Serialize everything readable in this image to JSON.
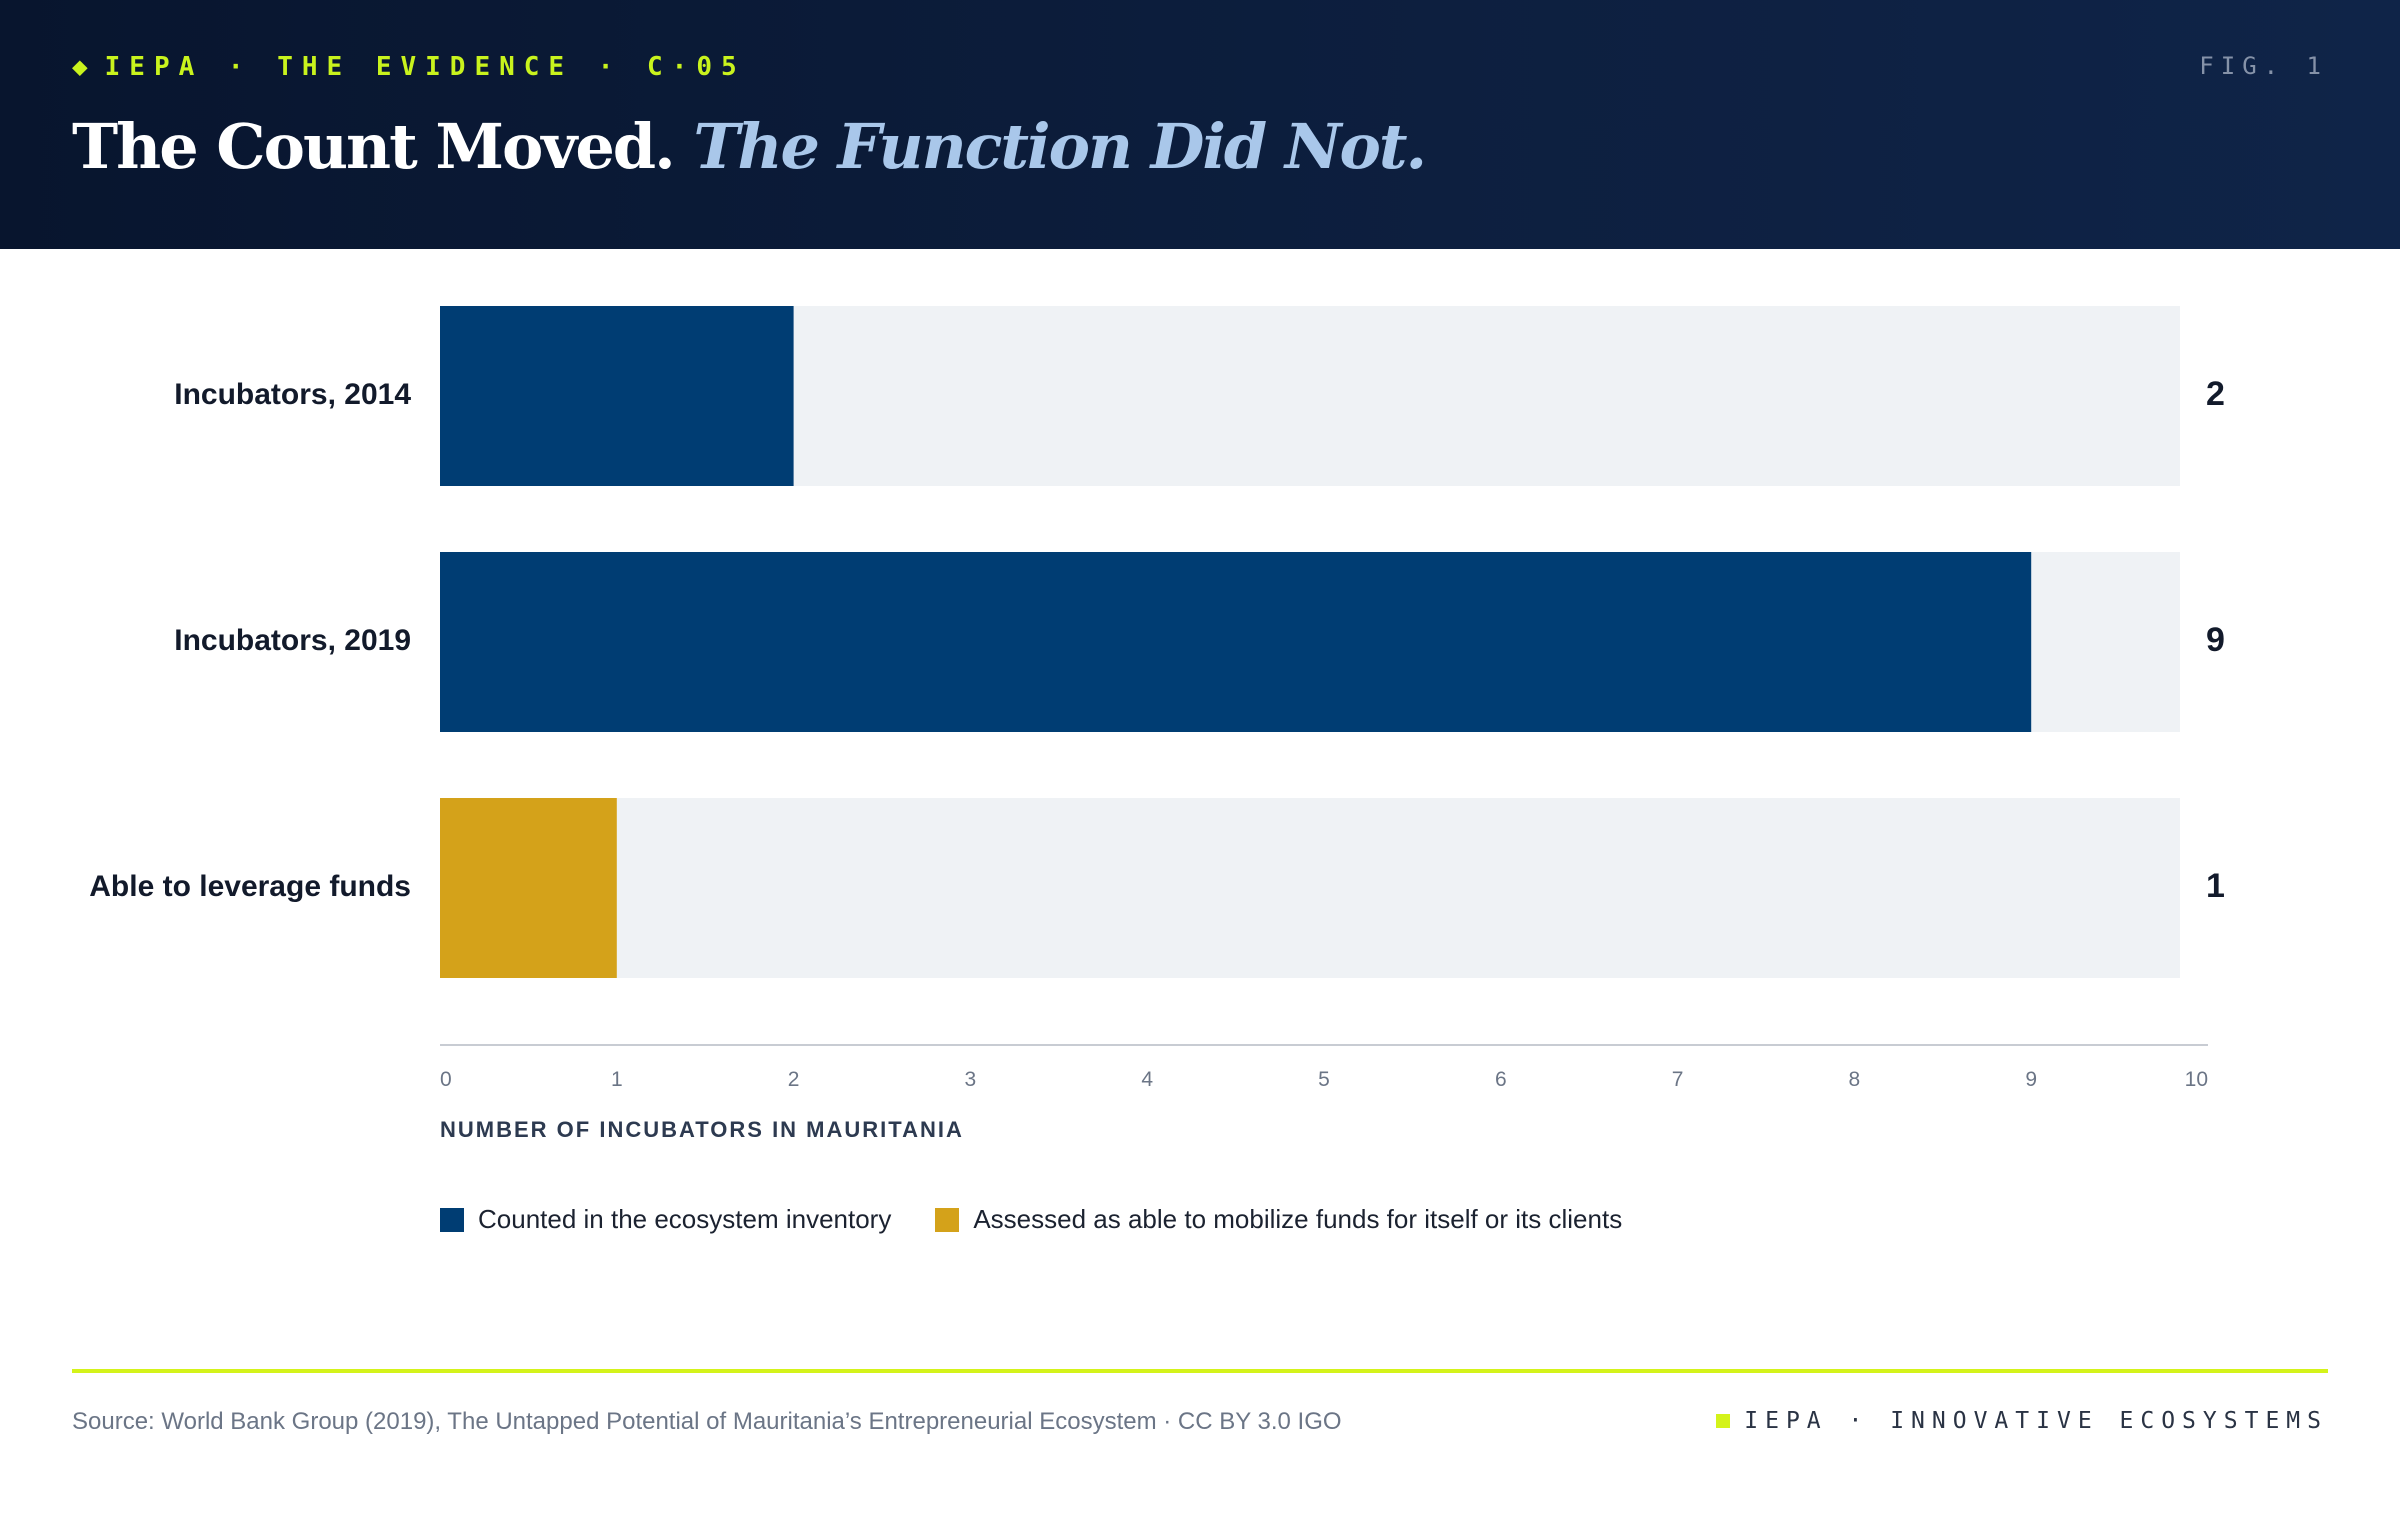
{
  "header": {
    "kicker": "IEPA · THE EVIDENCE · C·05",
    "fig_label": "FIG. 1",
    "title_main": "The Count Moved.",
    "title_accent": "The Function Did Not."
  },
  "colors": {
    "header_bg": "#0b1a36",
    "kicker": "#c9f31d",
    "accent_title": "#a9c7ea",
    "counted": "#003d73",
    "assessed": "#d4a21a",
    "track": "#eff2f5",
    "rule": "#d4f31a"
  },
  "chart_data": {
    "type": "bar",
    "orientation": "horizontal",
    "categories": [
      "Incubators, 2014",
      "Incubators, 2019",
      "Able to leverage funds"
    ],
    "values": [
      2,
      9,
      1
    ],
    "value_labels": [
      "2",
      "9",
      "1"
    ],
    "series_of_bar": [
      "counted",
      "counted",
      "assessed"
    ],
    "xlabel": "NUMBER OF INCUBATORS IN MAURITANIA",
    "xlim": [
      0,
      10
    ],
    "xticks": [
      "0",
      "1",
      "2",
      "3",
      "4",
      "5",
      "6",
      "7",
      "8",
      "9",
      "10"
    ],
    "grid": false,
    "legend_position": "bottom-left"
  },
  "legend": {
    "items": [
      {
        "key": "counted",
        "label": "Counted in the ecosystem inventory",
        "color": "#003d73"
      },
      {
        "key": "assessed",
        "label": "Assessed as able to mobilize funds for itself or its clients",
        "color": "#d4a21a"
      }
    ]
  },
  "footer": {
    "source": "Source: World Bank Group (2019), The Untapped Potential of Mauritania’s Entrepreneurial Ecosystem · CC BY 3.0 IGO",
    "brand": "IEPA · INNOVATIVE ECOSYSTEMS"
  }
}
